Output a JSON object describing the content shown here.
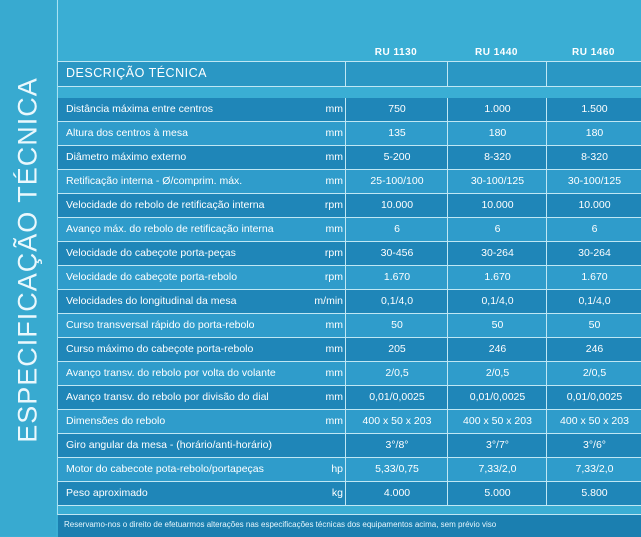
{
  "side_title": "ESPECIFICAÇÃO TÉCNICA",
  "section_title": "DESCRIÇÃO TÉCNICA",
  "models": [
    "RU 1130",
    "RU 1440",
    "RU 1460"
  ],
  "rows": [
    {
      "label": "Distância máxima entre centros",
      "unit": "mm",
      "values": [
        "750",
        "1.000",
        "1.500"
      ]
    },
    {
      "label": "Altura dos centros à mesa",
      "unit": "mm",
      "values": [
        "135",
        "180",
        "180"
      ]
    },
    {
      "label": "Diâmetro máximo externo",
      "unit": "mm",
      "values": [
        "5-200",
        "8-320",
        "8-320"
      ]
    },
    {
      "label": "Retificação interna - Ø/comprim. máx.",
      "unit": "mm",
      "values": [
        "25-100/100",
        "30-100/125",
        "30-100/125"
      ]
    },
    {
      "label": "Velocidade do rebolo de retificação interna",
      "unit": "rpm",
      "values": [
        "10.000",
        "10.000",
        "10.000"
      ]
    },
    {
      "label": "Avanço máx. do rebolo de retificação interna",
      "unit": "mm",
      "values": [
        "6",
        "6",
        "6"
      ]
    },
    {
      "label": "Velocidade do cabeçote porta-peças",
      "unit": "rpm",
      "values": [
        "30-456",
        "30-264",
        "30-264"
      ]
    },
    {
      "label": "Velocidade do cabeçote porta-rebolo",
      "unit": "rpm",
      "values": [
        "1.670",
        "1.670",
        "1.670"
      ]
    },
    {
      "label": "Velocidades do longitudinal da mesa",
      "unit": "m/min",
      "values": [
        "0,1/4,0",
        "0,1/4,0",
        "0,1/4,0"
      ]
    },
    {
      "label": "Curso transversal rápido do porta-rebolo",
      "unit": "mm",
      "values": [
        "50",
        "50",
        "50"
      ]
    },
    {
      "label": "Curso máximo do cabeçote porta-rebolo",
      "unit": "mm",
      "values": [
        "205",
        "246",
        "246"
      ]
    },
    {
      "label": "Avanço transv. do rebolo por volta do volante",
      "unit": "mm",
      "values": [
        "2/0,5",
        "2/0,5",
        "2/0,5"
      ]
    },
    {
      "label": "Avanço transv. do rebolo por divisão do dial",
      "unit": "mm",
      "values": [
        "0,01/0,0025",
        "0,01/0,0025",
        "0,01/0,0025"
      ]
    },
    {
      "label": "Dimensões do rebolo",
      "unit": "mm",
      "values": [
        "400 x 50 x 203",
        "400 x 50 x 203",
        "400 x 50 x 203"
      ]
    },
    {
      "label": "Giro angular da mesa - (horário/anti-horário)",
      "unit": "",
      "values": [
        "3°/8°",
        "3°/7°",
        "3°/6°"
      ]
    },
    {
      "label": "Motor do cabecote pota-rebolo/portapeças",
      "unit": "hp",
      "values": [
        "5,33/0,75",
        "7,33/2,0",
        "7,33/2,0"
      ]
    },
    {
      "label": "Peso aproximado",
      "unit": "kg",
      "values": [
        "4.000",
        "5.000",
        "5.800"
      ]
    }
  ],
  "footer": "Reservamo-nos o direito de efetuarmos alterações nas especificações técnicas dos equipamentos acima, sem prévio viso"
}
